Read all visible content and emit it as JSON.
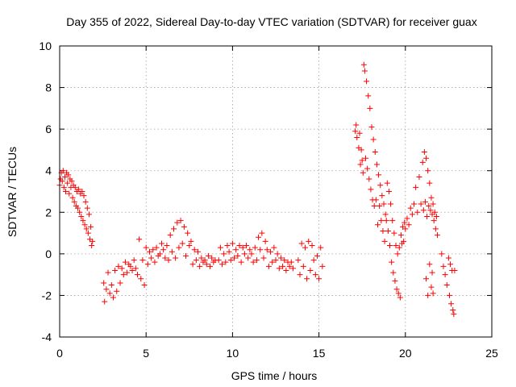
{
  "chart_data": {
    "type": "scatter",
    "title": "Day 355 of 2022, Sidereal Day-to-day VTEC variation (SDTVAR) for receiver guax",
    "xlabel": "GPS time / hours",
    "ylabel": "SDTVAR / TECUs",
    "xlim": [
      0,
      25
    ],
    "ylim": [
      -4,
      10
    ],
    "xticks": [
      0,
      5,
      10,
      15,
      20,
      25
    ],
    "yticks": [
      -4,
      -2,
      0,
      2,
      4,
      6,
      8,
      10
    ],
    "grid": true,
    "marker": "+",
    "color": "#ff0000",
    "series": [
      {
        "name": "SDTVAR",
        "points": [
          [
            0.0,
            3.3
          ],
          [
            0.05,
            3.6
          ],
          [
            0.1,
            3.9
          ],
          [
            0.15,
            3.5
          ],
          [
            0.2,
            4.0
          ],
          [
            0.25,
            3.2
          ],
          [
            0.3,
            3.7
          ],
          [
            0.35,
            3.0
          ],
          [
            0.4,
            3.9
          ],
          [
            0.45,
            3.4
          ],
          [
            0.5,
            3.8
          ],
          [
            0.55,
            2.9
          ],
          [
            0.6,
            3.6
          ],
          [
            0.65,
            3.2
          ],
          [
            0.7,
            3.5
          ],
          [
            0.75,
            2.7
          ],
          [
            0.8,
            3.3
          ],
          [
            0.85,
            2.5
          ],
          [
            0.9,
            3.2
          ],
          [
            0.95,
            2.3
          ],
          [
            1.0,
            3.0
          ],
          [
            1.05,
            2.2
          ],
          [
            1.1,
            3.1
          ],
          [
            1.15,
            2.0
          ],
          [
            1.2,
            2.9
          ],
          [
            1.25,
            1.8
          ],
          [
            1.3,
            3.0
          ],
          [
            1.35,
            1.6
          ],
          [
            1.4,
            2.8
          ],
          [
            1.45,
            1.4
          ],
          [
            1.5,
            2.5
          ],
          [
            1.55,
            1.2
          ],
          [
            1.6,
            2.2
          ],
          [
            1.65,
            1.0
          ],
          [
            1.7,
            1.9
          ],
          [
            1.75,
            0.7
          ],
          [
            1.8,
            1.3
          ],
          [
            1.85,
            0.4
          ],
          [
            1.9,
            0.6
          ],
          [
            2.55,
            -1.4
          ],
          [
            2.6,
            -2.3
          ],
          [
            2.7,
            -1.7
          ],
          [
            2.8,
            -0.9
          ],
          [
            2.9,
            -1.9
          ],
          [
            3.0,
            -1.5
          ],
          [
            3.1,
            -2.1
          ],
          [
            3.2,
            -0.8
          ],
          [
            3.3,
            -1.8
          ],
          [
            3.4,
            -0.6
          ],
          [
            3.5,
            -1.4
          ],
          [
            3.6,
            -0.7
          ],
          [
            3.7,
            -1.0
          ],
          [
            3.8,
            -0.4
          ],
          [
            3.9,
            -0.9
          ],
          [
            4.0,
            -0.5
          ],
          [
            4.1,
            -0.6
          ],
          [
            4.2,
            -0.8
          ],
          [
            4.3,
            -0.3
          ],
          [
            4.4,
            -0.7
          ],
          [
            4.5,
            -1.0
          ],
          [
            4.6,
            0.7
          ],
          [
            4.7,
            -1.2
          ],
          [
            4.8,
            -0.3
          ],
          [
            4.9,
            -1.5
          ],
          [
            5.0,
            0.3
          ],
          [
            5.1,
            -0.5
          ],
          [
            5.2,
            0.1
          ],
          [
            5.3,
            -0.2
          ],
          [
            5.4,
            0.2
          ],
          [
            5.5,
            -0.4
          ],
          [
            5.6,
            0.3
          ],
          [
            5.7,
            -0.1
          ],
          [
            5.8,
            0.0
          ],
          [
            5.9,
            0.5
          ],
          [
            6.0,
            0.2
          ],
          [
            6.1,
            -0.2
          ],
          [
            6.2,
            0.4
          ],
          [
            6.3,
            -0.3
          ],
          [
            6.4,
            0.9
          ],
          [
            6.5,
            0.1
          ],
          [
            6.6,
            1.2
          ],
          [
            6.7,
            -0.2
          ],
          [
            6.8,
            1.5
          ],
          [
            6.9,
            0.3
          ],
          [
            7.0,
            1.6
          ],
          [
            7.1,
            0.5
          ],
          [
            7.2,
            1.3
          ],
          [
            7.3,
            -0.1
          ],
          [
            7.4,
            1.0
          ],
          [
            7.5,
            0.4
          ],
          [
            7.6,
            0.6
          ],
          [
            7.7,
            -0.5
          ],
          [
            7.8,
            0.2
          ],
          [
            7.9,
            -0.3
          ],
          [
            8.0,
            0.1
          ],
          [
            8.1,
            -0.6
          ],
          [
            8.2,
            -0.2
          ],
          [
            8.3,
            -0.4
          ],
          [
            8.4,
            -0.3
          ],
          [
            8.5,
            -0.5
          ],
          [
            8.6,
            -0.1
          ],
          [
            8.7,
            -0.6
          ],
          [
            8.8,
            -0.2
          ],
          [
            8.9,
            -0.4
          ],
          [
            9.0,
            -0.3
          ],
          [
            9.2,
            -0.3
          ],
          [
            9.3,
            0.3
          ],
          [
            9.4,
            -0.5
          ],
          [
            9.5,
            0.0
          ],
          [
            9.6,
            -0.4
          ],
          [
            9.7,
            0.4
          ],
          [
            9.8,
            0.1
          ],
          [
            9.9,
            -0.3
          ],
          [
            10.0,
            0.5
          ],
          [
            10.1,
            -0.2
          ],
          [
            10.2,
            0.2
          ],
          [
            10.3,
            -0.1
          ],
          [
            10.4,
            0.4
          ],
          [
            10.5,
            -0.4
          ],
          [
            10.6,
            0.3
          ],
          [
            10.7,
            0.0
          ],
          [
            10.8,
            0.4
          ],
          [
            10.9,
            -0.2
          ],
          [
            11.0,
            0.2
          ],
          [
            11.1,
            0.0
          ],
          [
            11.2,
            -0.4
          ],
          [
            11.3,
            0.3
          ],
          [
            11.4,
            -0.3
          ],
          [
            11.5,
            0.8
          ],
          [
            11.6,
            0.2
          ],
          [
            11.7,
            1.0
          ],
          [
            11.8,
            -0.2
          ],
          [
            11.9,
            0.6
          ],
          [
            12.0,
            0.2
          ],
          [
            12.1,
            -0.6
          ],
          [
            12.2,
            0.1
          ],
          [
            12.3,
            -0.4
          ],
          [
            12.4,
            0.3
          ],
          [
            12.5,
            -0.3
          ],
          [
            12.6,
            0.0
          ],
          [
            12.7,
            -0.7
          ],
          [
            12.8,
            -0.2
          ],
          [
            12.9,
            -0.6
          ],
          [
            13.0,
            -0.3
          ],
          [
            13.1,
            -0.8
          ],
          [
            13.2,
            -0.4
          ],
          [
            13.3,
            -0.6
          ],
          [
            13.4,
            -0.4
          ],
          [
            13.5,
            -0.7
          ],
          [
            13.8,
            -0.3
          ],
          [
            13.9,
            -1.0
          ],
          [
            14.0,
            0.5
          ],
          [
            14.1,
            -0.6
          ],
          [
            14.2,
            0.3
          ],
          [
            14.3,
            -1.2
          ],
          [
            14.4,
            0.6
          ],
          [
            14.5,
            -0.8
          ],
          [
            14.6,
            0.4
          ],
          [
            14.7,
            -0.3
          ],
          [
            14.8,
            -1.0
          ],
          [
            14.9,
            -0.1
          ],
          [
            15.0,
            -1.2
          ],
          [
            15.1,
            0.3
          ],
          [
            15.2,
            -0.6
          ],
          [
            17.1,
            5.9
          ],
          [
            17.15,
            6.2
          ],
          [
            17.2,
            5.6
          ],
          [
            17.3,
            5.1
          ],
          [
            17.35,
            5.8
          ],
          [
            17.4,
            4.3
          ],
          [
            17.45,
            5.0
          ],
          [
            17.5,
            4.5
          ],
          [
            17.55,
            3.9
          ],
          [
            17.6,
            9.1
          ],
          [
            17.65,
            8.8
          ],
          [
            17.7,
            4.6
          ],
          [
            17.75,
            8.3
          ],
          [
            17.8,
            4.1
          ],
          [
            17.85,
            7.6
          ],
          [
            17.9,
            3.6
          ],
          [
            17.95,
            7.0
          ],
          [
            18.0,
            3.1
          ],
          [
            18.05,
            6.1
          ],
          [
            18.1,
            2.6
          ],
          [
            18.15,
            5.5
          ],
          [
            18.2,
            2.3
          ],
          [
            18.25,
            4.9
          ],
          [
            18.3,
            2.6
          ],
          [
            18.35,
            4.3
          ],
          [
            18.4,
            1.4
          ],
          [
            18.45,
            3.8
          ],
          [
            18.5,
            2.3
          ],
          [
            18.55,
            3.3
          ],
          [
            18.6,
            1.6
          ],
          [
            18.65,
            2.8
          ],
          [
            18.7,
            1.1
          ],
          [
            18.75,
            2.4
          ],
          [
            18.8,
            0.6
          ],
          [
            18.85,
            1.9
          ],
          [
            18.9,
            1.6
          ],
          [
            18.95,
            3.4
          ],
          [
            19.0,
            1.1
          ],
          [
            19.05,
            3.0
          ],
          [
            19.1,
            0.4
          ],
          [
            19.15,
            2.4
          ],
          [
            19.2,
            -0.4
          ],
          [
            19.25,
            1.6
          ],
          [
            19.3,
            -0.9
          ],
          [
            19.35,
            1.0
          ],
          [
            19.4,
            -1.3
          ],
          [
            19.45,
            0.4
          ],
          [
            19.5,
            -1.7
          ],
          [
            19.55,
            0.0
          ],
          [
            19.6,
            -1.9
          ],
          [
            19.65,
            0.3
          ],
          [
            19.7,
            -2.1
          ],
          [
            19.75,
            0.9
          ],
          [
            19.8,
            0.5
          ],
          [
            19.85,
            1.3
          ],
          [
            19.9,
            0.6
          ],
          [
            19.95,
            1.5
          ],
          [
            20.0,
            1.2
          ],
          [
            20.1,
            1.7
          ],
          [
            20.2,
            1.4
          ],
          [
            20.3,
            2.2
          ],
          [
            20.4,
            1.9
          ],
          [
            20.5,
            2.4
          ],
          [
            20.6,
            3.2
          ],
          [
            20.7,
            2.0
          ],
          [
            20.8,
            3.7
          ],
          [
            20.9,
            2.4
          ],
          [
            21.0,
            4.4
          ],
          [
            21.05,
            2.1
          ],
          [
            21.1,
            4.9
          ],
          [
            21.15,
            2.5
          ],
          [
            21.2,
            4.6
          ],
          [
            21.25,
            1.8
          ],
          [
            21.3,
            4.0
          ],
          [
            21.35,
            2.3
          ],
          [
            21.4,
            3.4
          ],
          [
            21.45,
            2.1
          ],
          [
            21.5,
            2.7
          ],
          [
            21.55,
            1.9
          ],
          [
            21.6,
            2.4
          ],
          [
            21.65,
            1.6
          ],
          [
            21.7,
            2.0
          ],
          [
            21.75,
            1.2
          ],
          [
            21.8,
            1.8
          ],
          [
            21.85,
            0.9
          ],
          [
            21.2,
            -1.2
          ],
          [
            21.3,
            -2.0
          ],
          [
            21.4,
            -0.5
          ],
          [
            21.5,
            -1.6
          ],
          [
            21.55,
            -0.9
          ],
          [
            21.6,
            -1.9
          ],
          [
            22.1,
            0.0
          ],
          [
            22.2,
            -0.6
          ],
          [
            22.3,
            -1.0
          ],
          [
            22.4,
            -1.5
          ],
          [
            22.5,
            -0.2
          ],
          [
            22.55,
            -2.0
          ],
          [
            22.6,
            -0.5
          ],
          [
            22.65,
            -2.4
          ],
          [
            22.7,
            -0.8
          ],
          [
            22.75,
            -2.7
          ],
          [
            22.8,
            -2.9
          ],
          [
            22.85,
            -0.8
          ]
        ]
      }
    ]
  }
}
